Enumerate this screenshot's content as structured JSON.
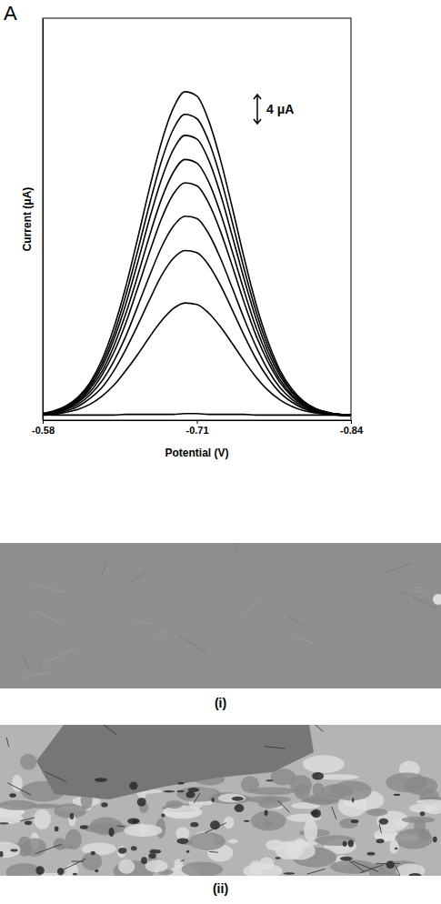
{
  "panel": "A",
  "chart_data": {
    "type": "line",
    "x_label": "Potential (V)",
    "y_label": "Current (μA)",
    "x": [
      -0.58,
      -0.59,
      -0.6,
      -0.61,
      -0.62,
      -0.63,
      -0.64,
      -0.65,
      -0.66,
      -0.67,
      -0.68,
      -0.69,
      -0.7,
      -0.71,
      -0.72,
      -0.73,
      -0.74,
      -0.75,
      -0.76,
      -0.77,
      -0.78,
      -0.79,
      -0.8,
      -0.81,
      -0.82,
      -0.83,
      -0.84
    ],
    "series": [
      {
        "color": "#000000",
        "values": [
          0.3,
          0.7,
          1.4,
          2.6,
          4.6,
          7.7,
          12.1,
          17.7,
          24.3,
          31.2,
          37.5,
          42.2,
          44.5,
          43.9,
          40.5,
          35.1,
          28.5,
          21.6,
          15.3,
          10.2,
          6.3,
          3.7,
          2.0,
          1.0,
          0.5,
          0.2,
          0.1
        ]
      },
      {
        "color": "#000000",
        "values": [
          0.3,
          0.6,
          1.3,
          2.4,
          4.3,
          7.2,
          11.2,
          16.5,
          22.6,
          29.0,
          34.9,
          39.3,
          41.4,
          40.8,
          37.7,
          32.7,
          26.5,
          20.1,
          14.3,
          9.5,
          5.9,
          3.4,
          1.9,
          1.0,
          0.5,
          0.2,
          0.1
        ]
      },
      {
        "color": "#000000",
        "values": [
          0.3,
          0.6,
          1.2,
          2.2,
          4.0,
          6.7,
          10.5,
          15.3,
          21.0,
          27.0,
          32.4,
          36.5,
          38.5,
          38.0,
          35.1,
          30.4,
          24.6,
          18.7,
          13.3,
          8.8,
          5.5,
          3.2,
          1.7,
          0.9,
          0.4,
          0.2,
          0.1
        ]
      },
      {
        "color": "#000000",
        "values": [
          0.2,
          0.5,
          1.1,
          2.0,
          3.7,
          6.1,
          9.6,
          14.0,
          19.2,
          24.7,
          29.7,
          33.4,
          35.2,
          34.7,
          32.1,
          27.8,
          22.5,
          17.1,
          12.1,
          8.1,
          5.0,
          2.9,
          1.6,
          0.8,
          0.4,
          0.2,
          0.1
        ]
      },
      {
        "color": "#000000",
        "values": [
          0.2,
          0.5,
          1.0,
          1.9,
          3.3,
          5.6,
          8.7,
          12.7,
          17.5,
          22.4,
          27.0,
          30.4,
          32.0,
          31.6,
          29.2,
          25.3,
          20.5,
          15.5,
          11.0,
          7.4,
          4.6,
          2.7,
          1.4,
          0.7,
          0.4,
          0.2,
          0.1
        ]
      },
      {
        "color": "#000000",
        "values": [
          0.2,
          0.4,
          0.9,
          1.6,
          2.9,
          4.8,
          7.5,
          10.9,
          15.0,
          19.2,
          23.1,
          26.0,
          27.4,
          27.1,
          25.0,
          21.6,
          17.5,
          13.3,
          9.5,
          6.3,
          3.9,
          2.3,
          1.2,
          0.6,
          0.3,
          0.1,
          0.1
        ]
      },
      {
        "color": "#000000",
        "values": [
          0.2,
          0.3,
          0.7,
          1.3,
          2.4,
          3.9,
          6.2,
          9.1,
          12.4,
          15.9,
          19.2,
          21.6,
          22.7,
          22.4,
          20.7,
          17.9,
          14.5,
          11.0,
          7.8,
          5.2,
          3.2,
          1.9,
          1.0,
          0.5,
          0.3,
          0.1,
          0.0
        ]
      },
      {
        "color": "#000000",
        "values": [
          0.1,
          0.2,
          0.5,
          0.9,
          1.6,
          2.7,
          4.2,
          6.2,
          8.4,
          10.8,
          13.0,
          14.7,
          15.5,
          15.3,
          14.1,
          12.2,
          9.9,
          7.5,
          5.3,
          3.5,
          2.2,
          1.3,
          0.7,
          0.4,
          0.2,
          0.1,
          0.0
        ]
      },
      {
        "color": "#000000",
        "values": [
          0.2,
          0.1,
          0.1,
          0.1,
          0.1,
          0.1,
          0.1,
          0.2,
          0.2,
          0.2,
          0.2,
          0.2,
          0.3,
          0.3,
          0.2,
          0.2,
          0.2,
          0.2,
          0.1,
          0.1,
          0.1,
          0.1,
          0.1,
          0.1,
          0.1,
          0.1,
          0.1
        ]
      }
    ],
    "xlim": [
      -0.58,
      -0.84
    ],
    "xticks": [
      -0.58,
      -0.71,
      -0.84
    ],
    "ylim": [
      -0.6,
      54.6
    ],
    "tick_labels": "x",
    "grid": false,
    "scale_bar": {
      "value": 4,
      "label": "4 μA"
    }
  },
  "images": [
    {
      "caption": "(i)"
    },
    {
      "caption": "(ii)"
    }
  ]
}
